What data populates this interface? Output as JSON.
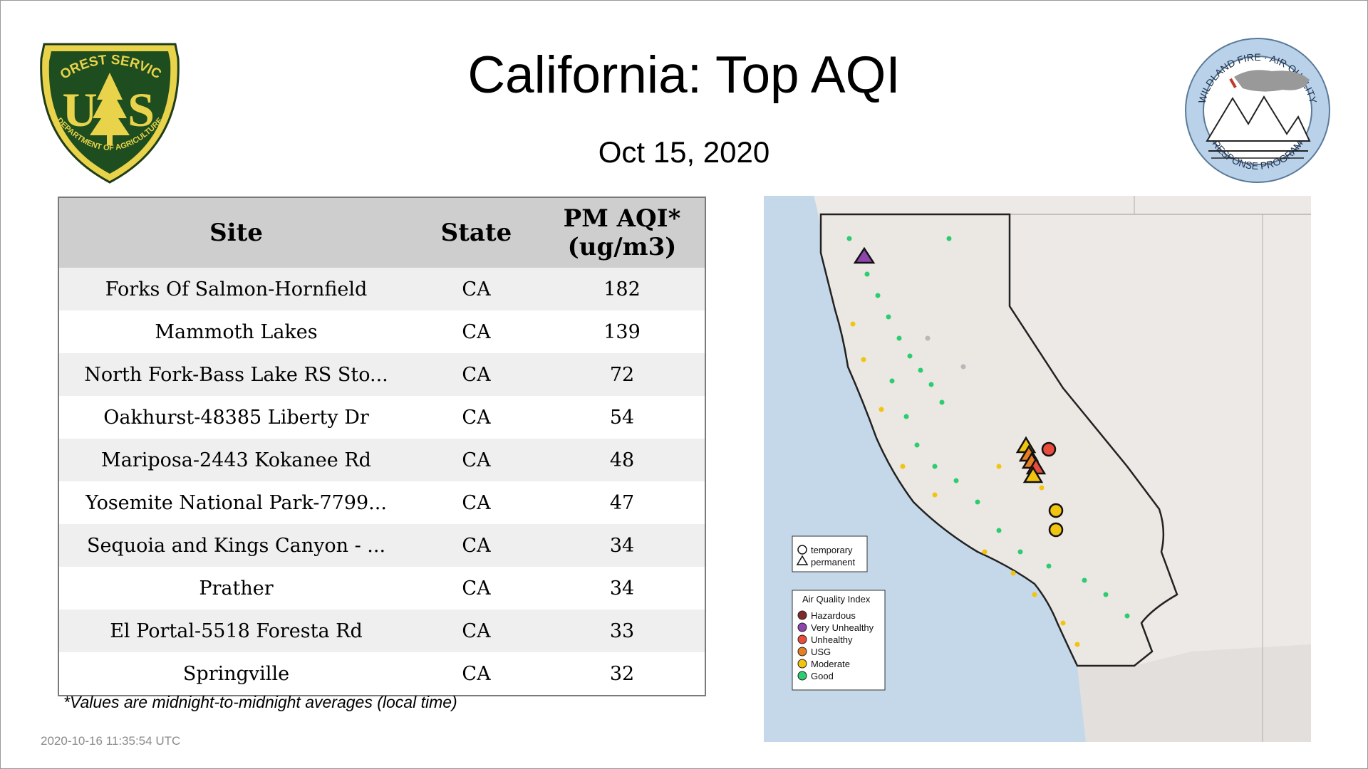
{
  "title": "California: Top AQI",
  "date": "Oct 15, 2020",
  "logos": {
    "left": {
      "top_text": "FOREST SERVICE",
      "letters": "U S",
      "bottom_text": "DEPARTMENT OF AGRICULTURE",
      "icon": "forest-service-shield-icon"
    },
    "right": {
      "top_text": "WILDLAND FIRE · AIR QUALITY",
      "bottom_text": "RESPONSE PROGRAM",
      "icon": "wildland-fire-air-quality-seal-icon"
    }
  },
  "table": {
    "headers": {
      "site": "Site",
      "state": "State",
      "aqi_line1": "PM AQI*",
      "aqi_line2": "(ug/m3)"
    },
    "rows": [
      {
        "site": "Forks Of Salmon-Hornfield",
        "state": "CA",
        "aqi": "182"
      },
      {
        "site": "Mammoth Lakes",
        "state": "CA",
        "aqi": "139"
      },
      {
        "site": "North Fork-Bass Lake RS Sto...",
        "state": "CA",
        "aqi": "72"
      },
      {
        "site": "Oakhurst-48385 Liberty Dr",
        "state": "CA",
        "aqi": "54"
      },
      {
        "site": "Mariposa-2443 Kokanee Rd",
        "state": "CA",
        "aqi": "48"
      },
      {
        "site": "Yosemite National Park-7799...",
        "state": "CA",
        "aqi": "47"
      },
      {
        "site": "Sequoia and Kings Canyon - ...",
        "state": "CA",
        "aqi": "34"
      },
      {
        "site": "Prather",
        "state": "CA",
        "aqi": "34"
      },
      {
        "site": "El Portal-5518 Foresta Rd",
        "state": "CA",
        "aqi": "33"
      },
      {
        "site": "Springville",
        "state": "CA",
        "aqi": "32"
      }
    ]
  },
  "footnote": "*Values are midnight-to-midnight averages (local time)",
  "timestamp": "2020-10-16 11:35:54 UTC",
  "map": {
    "legend_shape": [
      {
        "shape": "circle",
        "label": "temporary"
      },
      {
        "shape": "triangle",
        "label": "permanent"
      }
    ],
    "legend_aqi": {
      "title": "Air Quality Index",
      "items": [
        {
          "label": "Hazardous",
          "color": "#7e2a2a"
        },
        {
          "label": "Very Unhealthy",
          "color": "#8e44ad"
        },
        {
          "label": "Unhealthy",
          "color": "#e74c3c"
        },
        {
          "label": "USG",
          "color": "#e67e22"
        },
        {
          "label": "Moderate",
          "color": "#f1c40f"
        },
        {
          "label": "Good",
          "color": "#2ecc71"
        }
      ]
    },
    "highlighted_monitors": [
      {
        "shape": "triangle",
        "category": "Very Unhealthy",
        "color": "#8e44ad"
      },
      {
        "shape": "circle",
        "category": "Unhealthy",
        "color": "#e74c3c"
      },
      {
        "shape": "triangle",
        "category": "Unhealthy",
        "color": "#e74c3c"
      },
      {
        "shape": "triangle",
        "category": "USG",
        "color": "#e67e22"
      },
      {
        "shape": "triangle",
        "category": "USG",
        "color": "#e67e22"
      },
      {
        "shape": "triangle",
        "category": "Moderate",
        "color": "#f1c40f"
      },
      {
        "shape": "triangle",
        "category": "Moderate",
        "color": "#f1c40f"
      },
      {
        "shape": "circle",
        "category": "Moderate",
        "color": "#f1c40f"
      },
      {
        "shape": "circle",
        "category": "Moderate",
        "color": "#f1c40f"
      }
    ],
    "colors": {
      "ocean": "#c4d8ea",
      "land": "#ece9e6",
      "border": "#222222",
      "no_data": "#b8b8b8"
    }
  }
}
